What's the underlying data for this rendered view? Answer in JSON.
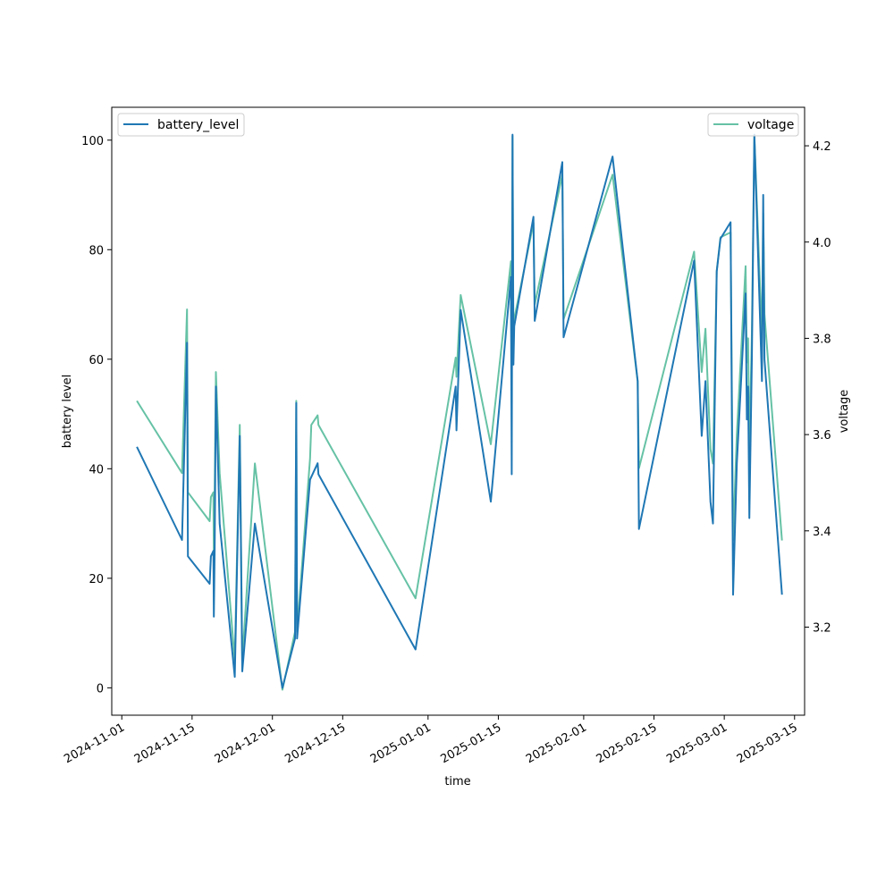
{
  "chart_data": {
    "type": "line",
    "xlabel": "time",
    "ylabel_left": "battery level",
    "ylabel_right": "voltage",
    "xlim": [
      "2024-10-30",
      "2025-03-17"
    ],
    "ylim_left": [
      -5,
      106
    ],
    "ylim_right": [
      3.017,
      4.28
    ],
    "x_ticks": [
      "2024-11-01",
      "2024-11-15",
      "2024-12-01",
      "2024-12-15",
      "2025-01-01",
      "2025-01-15",
      "2025-02-01",
      "2025-02-15",
      "2025-03-01",
      "2025-03-15"
    ],
    "y_ticks_left": [
      0,
      20,
      40,
      60,
      80,
      100
    ],
    "y_ticks_right": [
      3.2,
      3.4,
      3.6,
      3.8,
      4.0,
      4.2
    ],
    "grid": false,
    "legend_left_position": "upper-left",
    "legend_right_position": "upper-right",
    "series": [
      {
        "name": "battery_level",
        "axis": "left",
        "color": "#1f77b4",
        "points": [
          [
            "2024-11-04T00:00",
            44
          ],
          [
            "2024-11-13T00:00",
            27
          ],
          [
            "2024-11-14T00:00",
            63
          ],
          [
            "2024-11-14T04:00",
            24
          ],
          [
            "2024-11-18T12:00",
            19
          ],
          [
            "2024-11-18T18:00",
            24
          ],
          [
            "2024-11-19T06:00",
            25
          ],
          [
            "2024-11-19T08:00",
            13
          ],
          [
            "2024-11-19T12:00",
            25
          ],
          [
            "2024-11-19T18:00",
            55
          ],
          [
            "2024-11-20T12:00",
            30
          ],
          [
            "2024-11-23T12:00",
            2
          ],
          [
            "2024-11-24T12:00",
            46
          ],
          [
            "2024-11-25T00:00",
            3
          ],
          [
            "2024-11-27T12:00",
            30
          ],
          [
            "2024-12-03T00:00",
            0
          ],
          [
            "2024-12-05T12:00",
            9
          ],
          [
            "2024-12-05T18:00",
            52
          ],
          [
            "2024-12-05T22:00",
            9
          ],
          [
            "2024-12-08T12:00",
            38
          ],
          [
            "2024-12-10T00:00",
            41
          ],
          [
            "2024-12-10T04:00",
            39
          ],
          [
            "2024-12-29T12:00",
            7
          ],
          [
            "2025-01-06T12:00",
            55
          ],
          [
            "2025-01-06T16:00",
            47
          ],
          [
            "2025-01-07T12:00",
            69
          ],
          [
            "2025-01-13T12:00",
            34
          ],
          [
            "2025-01-17T12:00",
            75
          ],
          [
            "2025-01-17T16:00",
            39
          ],
          [
            "2025-01-17T20:00",
            101
          ],
          [
            "2025-01-18T00:00",
            59
          ],
          [
            "2025-01-18T04:00",
            66
          ],
          [
            "2025-01-22T00:00",
            86
          ],
          [
            "2025-01-22T06:00",
            67
          ],
          [
            "2025-01-27T18:00",
            96
          ],
          [
            "2025-01-28T00:00",
            64
          ],
          [
            "2025-02-06T18:00",
            97
          ],
          [
            "2025-02-11T18:00",
            56
          ],
          [
            "2025-02-12T00:00",
            29
          ],
          [
            "2025-02-23T00:00",
            78
          ],
          [
            "2025-02-24T12:00",
            46
          ],
          [
            "2025-02-25T06:00",
            56
          ],
          [
            "2025-02-26T06:00",
            34
          ],
          [
            "2025-02-26T18:00",
            30
          ],
          [
            "2025-02-27T12:00",
            76
          ],
          [
            "2025-02-28T06:00",
            82
          ],
          [
            "2025-03-02T06:00",
            85
          ],
          [
            "2025-03-02T18:00",
            17
          ],
          [
            "2025-03-03T12:00",
            41
          ],
          [
            "2025-03-05T06:00",
            72
          ],
          [
            "2025-03-05T12:00",
            49
          ],
          [
            "2025-03-05T18:00",
            55
          ],
          [
            "2025-03-06T00:00",
            31
          ],
          [
            "2025-03-06T12:00",
            60
          ],
          [
            "2025-03-07T00:00",
            101
          ],
          [
            "2025-03-08T12:00",
            56
          ],
          [
            "2025-03-08T18:00",
            90
          ],
          [
            "2025-03-09T00:00",
            60
          ],
          [
            "2025-03-12T12:00",
            17
          ]
        ]
      },
      {
        "name": "voltage",
        "axis": "right",
        "color": "#66c2a5",
        "points": [
          [
            "2024-11-04T00:00",
            3.67
          ],
          [
            "2024-11-13T00:00",
            3.52
          ],
          [
            "2024-11-14T00:00",
            3.86
          ],
          [
            "2024-11-14T04:00",
            3.48
          ],
          [
            "2024-11-18T12:00",
            3.42
          ],
          [
            "2024-11-18T18:00",
            3.47
          ],
          [
            "2024-11-19T06:00",
            3.48
          ],
          [
            "2024-11-19T08:00",
            3.34
          ],
          [
            "2024-11-19T12:00",
            3.48
          ],
          [
            "2024-11-19T18:00",
            3.73
          ],
          [
            "2024-11-20T12:00",
            3.52
          ],
          [
            "2024-11-23T12:00",
            3.13
          ],
          [
            "2024-11-24T12:00",
            3.62
          ],
          [
            "2024-11-25T00:00",
            3.13
          ],
          [
            "2024-11-27T12:00",
            3.54
          ],
          [
            "2024-12-03T00:00",
            3.07
          ],
          [
            "2024-12-05T12:00",
            3.19
          ],
          [
            "2024-12-05T18:00",
            3.67
          ],
          [
            "2024-12-05T22:00",
            3.19
          ],
          [
            "2024-12-08T12:00",
            3.55
          ],
          [
            "2024-12-08T18:00",
            3.62
          ],
          [
            "2024-12-10T00:00",
            3.64
          ],
          [
            "2024-12-10T04:00",
            3.62
          ],
          [
            "2024-12-29T12:00",
            3.26
          ],
          [
            "2025-01-06T12:00",
            3.76
          ],
          [
            "2025-01-06T16:00",
            3.72
          ],
          [
            "2025-01-07T12:00",
            3.89
          ],
          [
            "2025-01-13T12:00",
            3.58
          ],
          [
            "2025-01-17T12:00",
            3.96
          ],
          [
            "2025-01-17T16:00",
            3.67
          ],
          [
            "2025-01-17T20:00",
            4.22
          ],
          [
            "2025-01-18T00:00",
            3.8
          ],
          [
            "2025-01-18T04:00",
            3.84
          ],
          [
            "2025-01-22T00:00",
            4.04
          ],
          [
            "2025-01-22T06:00",
            3.87
          ],
          [
            "2025-01-27T18:00",
            4.14
          ],
          [
            "2025-01-28T00:00",
            3.84
          ],
          [
            "2025-02-06T18:00",
            4.14
          ],
          [
            "2025-02-11T18:00",
            3.71
          ],
          [
            "2025-02-12T00:00",
            3.53
          ],
          [
            "2025-02-23T00:00",
            3.98
          ],
          [
            "2025-02-24T12:00",
            3.73
          ],
          [
            "2025-02-25T06:00",
            3.82
          ],
          [
            "2025-02-26T06:00",
            3.57
          ],
          [
            "2025-02-26T18:00",
            3.54
          ],
          [
            "2025-02-27T12:00",
            3.94
          ],
          [
            "2025-02-28T06:00",
            4.01
          ],
          [
            "2025-03-02T06:00",
            4.02
          ],
          [
            "2025-03-02T18:00",
            3.38
          ],
          [
            "2025-03-03T12:00",
            3.6
          ],
          [
            "2025-03-05T06:00",
            3.95
          ],
          [
            "2025-03-05T12:00",
            3.75
          ],
          [
            "2025-03-05T18:00",
            3.8
          ],
          [
            "2025-03-06T00:00",
            3.56
          ],
          [
            "2025-03-06T12:00",
            3.81
          ],
          [
            "2025-03-07T00:00",
            4.22
          ],
          [
            "2025-03-08T12:00",
            3.8
          ],
          [
            "2025-03-08T18:00",
            4.06
          ],
          [
            "2025-03-09T00:00",
            3.85
          ],
          [
            "2025-03-12T12:00",
            3.38
          ]
        ]
      }
    ]
  }
}
